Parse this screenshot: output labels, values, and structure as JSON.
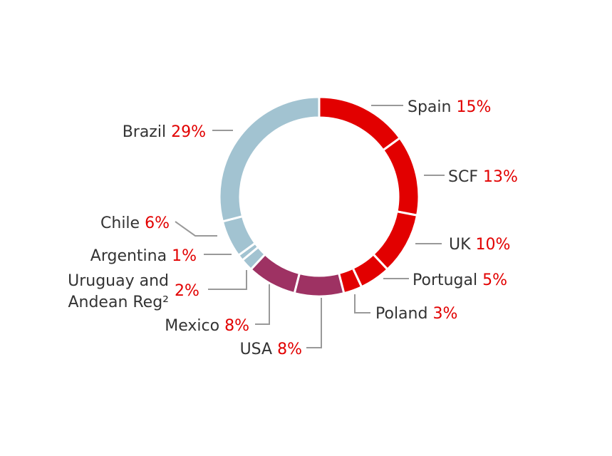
{
  "chart_data": {
    "type": "pie",
    "donut": true,
    "slices": [
      {
        "name": "Spain",
        "value": 15,
        "label": "15%",
        "color": "#e20000"
      },
      {
        "name": "SCF",
        "value": 13,
        "label": "13%",
        "color": "#e20000"
      },
      {
        "name": "UK",
        "value": 10,
        "label": "10%",
        "color": "#e20000"
      },
      {
        "name": "Portugal",
        "value": 5,
        "label": "5%",
        "color": "#e20000"
      },
      {
        "name": "Poland",
        "value": 3,
        "label": "3%",
        "color": "#e20000"
      },
      {
        "name": "USA",
        "value": 8,
        "label": "8%",
        "color": "#9e3263"
      },
      {
        "name": "Mexico",
        "value": 8,
        "label": "8%",
        "color": "#9e3263"
      },
      {
        "name": "Uruguay and Andean Reg²",
        "name_lines": [
          "Uruguay and",
          "Andean Reg²"
        ],
        "value": 2,
        "label": "2%",
        "color": "#a2c3d1"
      },
      {
        "name": "Argentina",
        "value": 1,
        "label": "1%",
        "color": "#a2c3d1"
      },
      {
        "name": "Chile",
        "value": 6,
        "label": "6%",
        "color": "#a2c3d1"
      },
      {
        "name": "Brazil",
        "value": 29,
        "label": "29%",
        "color": "#a2c3d1"
      }
    ]
  }
}
